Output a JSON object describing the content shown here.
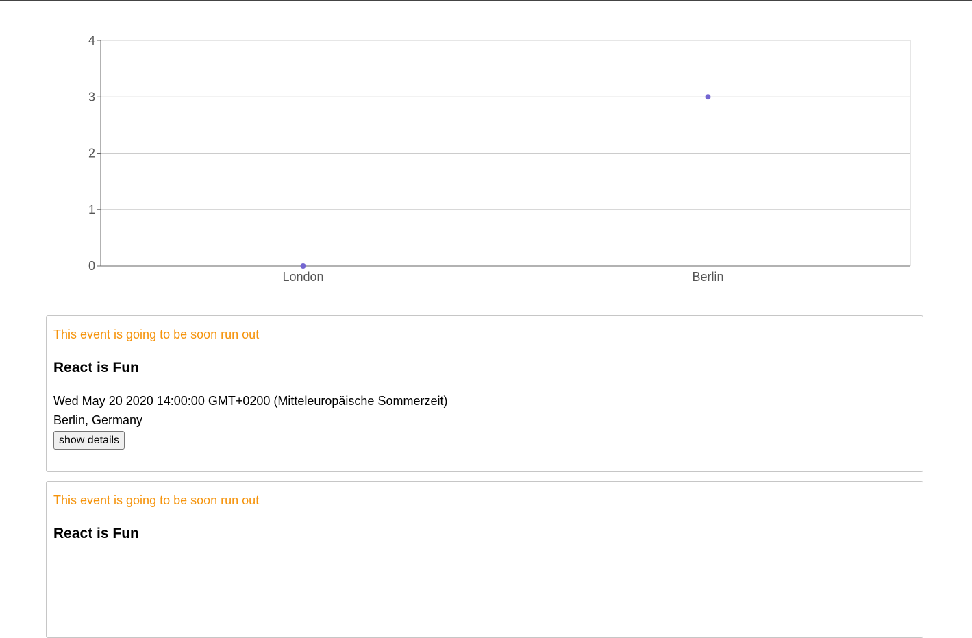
{
  "chart_data": {
    "type": "scatter",
    "categories": [
      "London",
      "Berlin"
    ],
    "values": [
      0,
      3
    ],
    "yticks": [
      0,
      1,
      2,
      3,
      4
    ],
    "ylim": [
      0,
      4
    ],
    "grid": true,
    "point_color": "#7466d1"
  },
  "events": [
    {
      "warning": "This event is going to be soon run out",
      "title": "React is Fun",
      "date": "Wed May 20 2020 14:00:00 GMT+0200 (Mitteleuropäische Sommerzeit)",
      "location": "Berlin, Germany",
      "button_label": "show details"
    },
    {
      "warning": "This event is going to be soon run out",
      "title": "React is Fun"
    }
  ],
  "colors": {
    "warning": "#f5930b",
    "border": "#c6c6c6"
  }
}
